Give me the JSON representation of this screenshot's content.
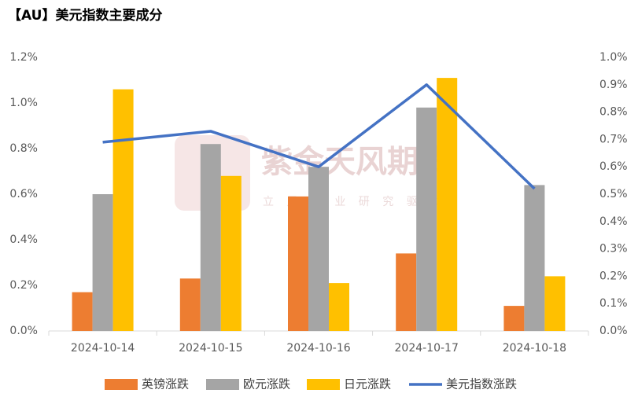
{
  "chart_data": {
    "type": "bar",
    "title": "【AU】美元指数主要成分",
    "watermark": "紫金天风期货",
    "watermark_subtitle": "立 足 产 业 研 究 驱 动",
    "categories": [
      "2024-10-14",
      "2024-10-15",
      "2024-10-16",
      "2024-10-17",
      "2024-10-18"
    ],
    "series": [
      {
        "name": "英镑涨跌",
        "color": "#ED7D31",
        "values": [
          0.17,
          0.23,
          0.59,
          0.34,
          0.11
        ]
      },
      {
        "name": "欧元涨跌",
        "color": "#A5A5A5",
        "values": [
          0.6,
          0.82,
          0.72,
          0.98,
          0.64
        ]
      },
      {
        "name": "日元涨跌",
        "color": "#FFC000",
        "values": [
          1.06,
          0.68,
          0.21,
          1.11,
          0.24
        ]
      },
      {
        "name": "美元指数涨跌",
        "color": "#4472C4",
        "type": "line",
        "axis": "y2",
        "values": [
          0.69,
          0.73,
          0.6,
          0.9,
          0.52
        ]
      }
    ],
    "ylim": [
      0,
      1.2
    ],
    "yticks": [
      {
        "value": 0,
        "label": "0.0%"
      },
      {
        "value": 0.2,
        "label": "0.2%"
      },
      {
        "value": 0.4,
        "label": "0.4%"
      },
      {
        "value": 0.6,
        "label": "0.6%"
      },
      {
        "value": 0.8,
        "label": "0.8%"
      },
      {
        "value": 1.0,
        "label": "1.0%"
      },
      {
        "value": 1.2,
        "label": "1.2%"
      }
    ],
    "y2lim": [
      0,
      1.0
    ],
    "y2ticks": [
      {
        "value": 0,
        "label": "0.0%"
      },
      {
        "value": 0.1,
        "label": "0.1%"
      },
      {
        "value": 0.2,
        "label": "0.2%"
      },
      {
        "value": 0.3,
        "label": "0.3%"
      },
      {
        "value": 0.4,
        "label": "0.4%"
      },
      {
        "value": 0.5,
        "label": "0.5%"
      },
      {
        "value": 0.6,
        "label": "0.6%"
      },
      {
        "value": 0.7,
        "label": "0.7%"
      },
      {
        "value": 0.8,
        "label": "0.8%"
      },
      {
        "value": 0.9,
        "label": "0.9%"
      },
      {
        "value": 1.0,
        "label": "1.0%"
      }
    ],
    "grid": false,
    "legend": "bottom"
  }
}
